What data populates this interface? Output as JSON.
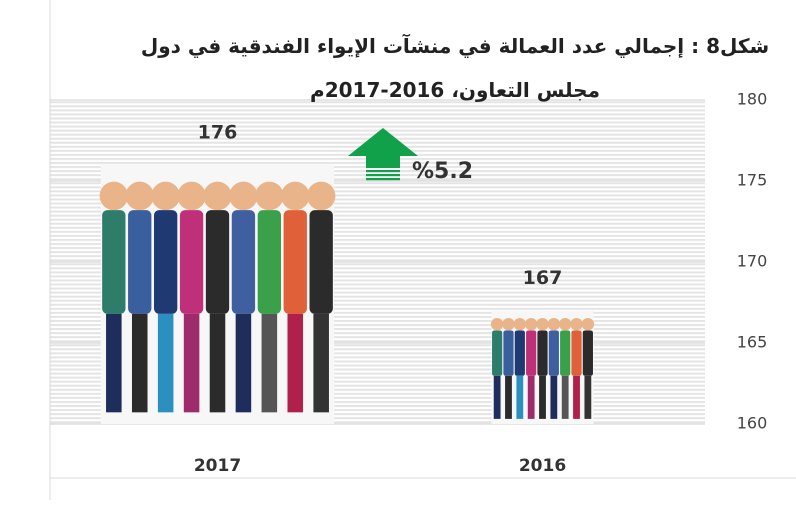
{
  "chart_data": {
    "type": "bar",
    "title": "شكل8 : إجمالي عدد العمالة في منشآت الإيواء الفندقية في دول مجلس التعاون، 2016-2017م",
    "categories": [
      "2017",
      "2016"
    ],
    "values": [
      176,
      167
    ],
    "ylim": [
      160,
      180
    ],
    "yticks": [
      160,
      165,
      170,
      175,
      180
    ],
    "grid": true,
    "annotation": "%5.2",
    "arrow_color": "#12a14b"
  }
}
